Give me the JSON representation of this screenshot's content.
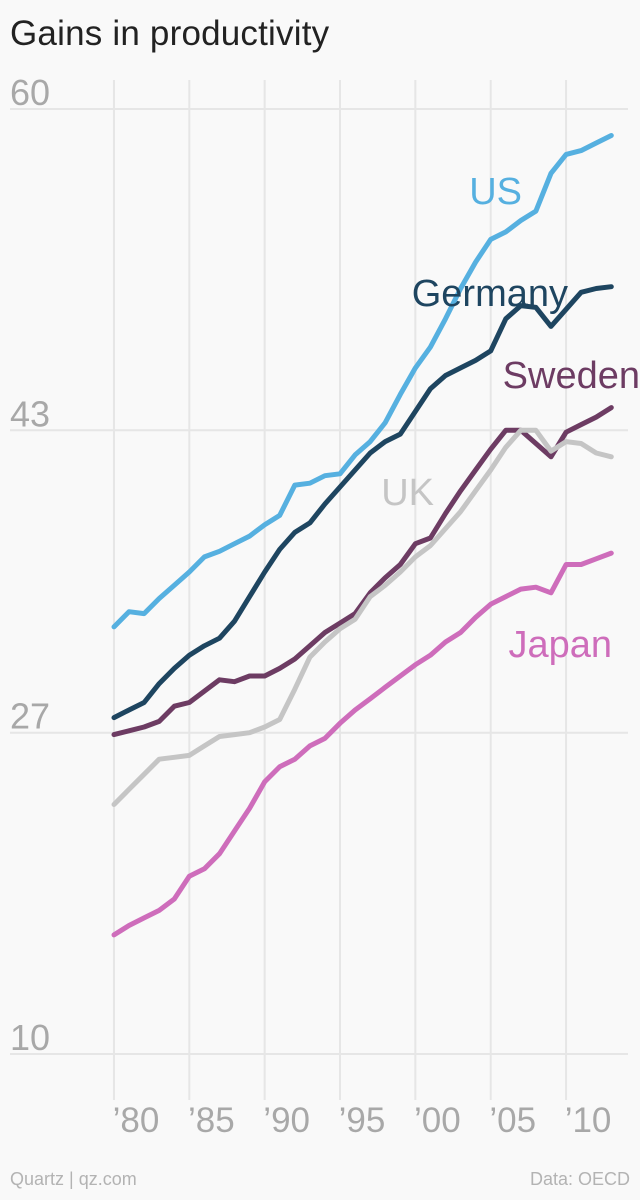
{
  "title": "Gains in productivity",
  "footer": {
    "left": "Quartz | qz.com",
    "right": "Data: OECD"
  },
  "colors": {
    "background": "#f9f9f9",
    "grid": "#e6e6e6",
    "tick_text": "#a8a8a8"
  },
  "chart_data": {
    "type": "line",
    "title": "Gains in productivity",
    "xlabel": "",
    "ylabel": "",
    "xlim": [
      1977.5,
      2013.5
    ],
    "ylim": [
      10,
      60
    ],
    "yticks": [
      10,
      27,
      43,
      60
    ],
    "xticks": [
      {
        "value": 1980,
        "label": "’80"
      },
      {
        "value": 1985,
        "label": "’85"
      },
      {
        "value": 1990,
        "label": "’90"
      },
      {
        "value": 1995,
        "label": "’95"
      },
      {
        "value": 2000,
        "label": "’00"
      },
      {
        "value": 2005,
        "label": "’05"
      },
      {
        "value": 2010,
        "label": "’10"
      }
    ],
    "grid": true,
    "legend": "inline labels",
    "x": [
      1980,
      1981,
      1982,
      1983,
      1984,
      1985,
      1986,
      1987,
      1988,
      1989,
      1990,
      1991,
      1992,
      1993,
      1994,
      1995,
      1996,
      1997,
      1998,
      1999,
      2000,
      2001,
      2002,
      2003,
      2004,
      2005,
      2006,
      2007,
      2008,
      2009,
      2010,
      2011,
      2012,
      2013
    ],
    "series": [
      {
        "name": "US",
        "color": "#56b0e0",
        "values": [
          32.6,
          33.4,
          33.3,
          34.1,
          34.8,
          35.5,
          36.3,
          36.6,
          37.0,
          37.4,
          38.0,
          38.5,
          40.1,
          40.2,
          40.6,
          40.7,
          41.7,
          42.4,
          43.4,
          44.9,
          46.3,
          47.4,
          48.9,
          50.5,
          51.9,
          53.1,
          53.5,
          54.1,
          54.6,
          56.6,
          57.6,
          57.8,
          58.2,
          58.6
        ]
      },
      {
        "name": "Germany",
        "color": "#1e4560",
        "values": [
          27.8,
          28.2,
          28.6,
          29.6,
          30.4,
          31.1,
          31.6,
          32.0,
          32.9,
          34.2,
          35.5,
          36.7,
          37.6,
          38.1,
          39.1,
          40.0,
          40.9,
          41.8,
          42.4,
          42.8,
          44.0,
          45.2,
          45.9,
          46.3,
          46.7,
          47.2,
          48.9,
          49.6,
          49.5,
          48.5,
          49.4,
          50.3,
          50.5,
          50.6
        ]
      },
      {
        "name": "Sweden",
        "color": "#6d3c63",
        "values": [
          26.9,
          27.1,
          27.3,
          27.6,
          28.4,
          28.6,
          29.2,
          29.8,
          29.7,
          30.0,
          30.0,
          30.4,
          30.9,
          31.6,
          32.3,
          32.8,
          33.3,
          34.4,
          35.2,
          35.9,
          37.0,
          37.3,
          38.6,
          39.8,
          40.9,
          42.0,
          43.0,
          43.0,
          42.3,
          41.6,
          42.9,
          43.3,
          43.7,
          44.2
        ]
      },
      {
        "name": "UK",
        "color": "#c5c5c5",
        "values": [
          23.2,
          24.0,
          24.8,
          25.6,
          25.7,
          25.8,
          26.3,
          26.8,
          26.9,
          27.0,
          27.3,
          27.7,
          29.3,
          31.0,
          31.8,
          32.5,
          33.0,
          34.2,
          34.8,
          35.5,
          36.3,
          36.9,
          37.8,
          38.7,
          39.8,
          40.9,
          42.1,
          43.0,
          43.0,
          41.9,
          42.4,
          42.3,
          41.8,
          41.6
        ]
      },
      {
        "name": "Japan",
        "color": "#ce6dbb",
        "values": [
          16.3,
          16.8,
          17.2,
          17.6,
          18.2,
          19.4,
          19.8,
          20.6,
          21.8,
          23.0,
          24.4,
          25.2,
          25.6,
          26.3,
          26.7,
          27.5,
          28.2,
          28.8,
          29.4,
          30.0,
          30.6,
          31.1,
          31.8,
          32.3,
          33.1,
          33.8,
          34.2,
          34.6,
          34.7,
          34.4,
          35.9,
          35.9,
          36.2,
          36.5
        ]
      }
    ]
  }
}
